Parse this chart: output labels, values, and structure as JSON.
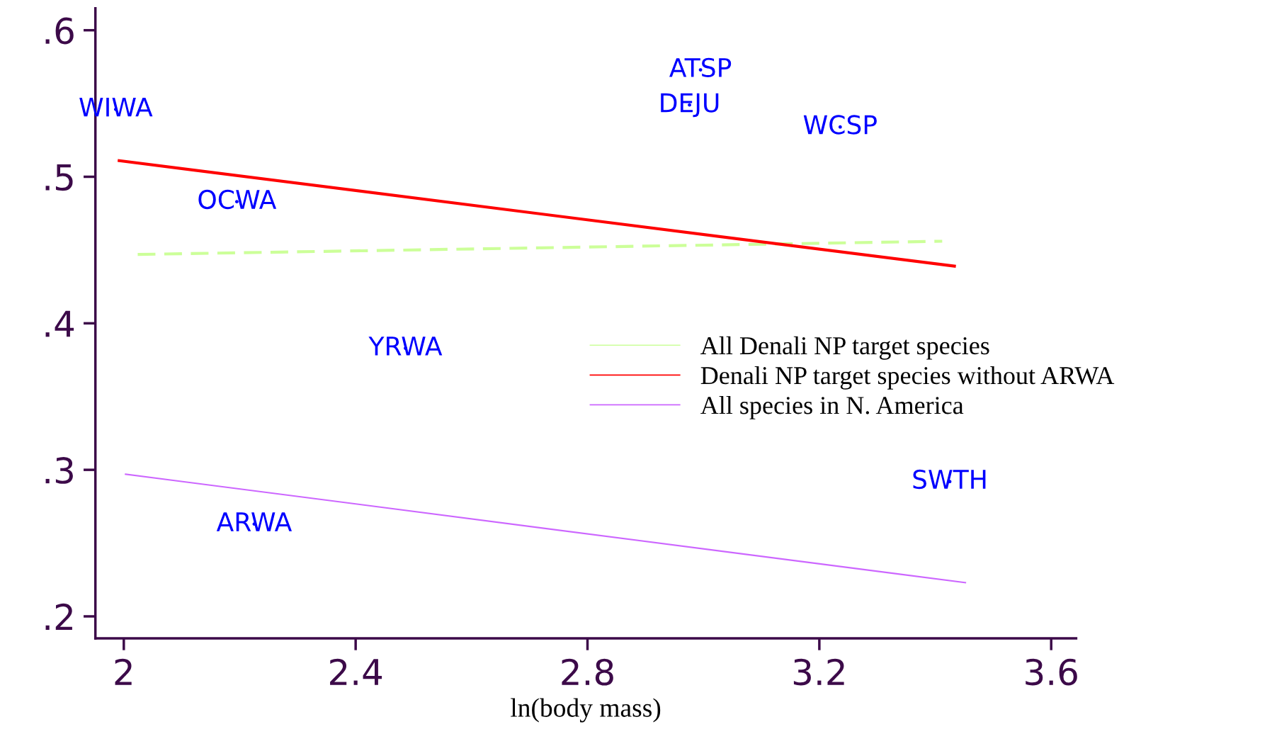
{
  "chart_data": {
    "type": "line",
    "xlabel": "ln(body mass)",
    "xlim": [
      1.951,
      3.643
    ],
    "xticks": [
      2,
      2.4,
      2.8,
      3.2,
      3.6
    ],
    "ylim": [
      0.185,
      0.615
    ],
    "yticks": [
      {
        "value": 0.2,
        "label": ".2"
      },
      {
        "value": 0.3,
        "label": ".3"
      },
      {
        "value": 0.4,
        "label": ".4"
      },
      {
        "value": 0.5,
        "label": ".5"
      },
      {
        "value": 0.6,
        "label": ".6"
      }
    ],
    "grid": false,
    "legend": "right",
    "marker": "none",
    "series": [
      {
        "name": "All Denali NP target species",
        "color": "#ccff99",
        "line_style": "dashed",
        "x": [
          2.024,
          3.412
        ],
        "values": [
          0.447,
          0.456
        ]
      },
      {
        "name": "Denali NP target species without ARWA",
        "color": "#ff0000",
        "line_style": "solid",
        "x": [
          1.992,
          3.433
        ],
        "values": [
          0.511,
          0.439
        ]
      },
      {
        "name": "All species in N. America",
        "color": "#cc66ff",
        "line_style": "solid",
        "x": [
          2.003,
          3.452
        ],
        "values": [
          0.297,
          0.223
        ]
      },
      {
        "type": "scatter",
        "color": "#0000ff",
        "x": [
          1.986,
          2.995,
          2.976,
          3.236,
          2.195,
          2.486,
          3.425,
          2.225
        ],
        "values": [
          0.546,
          0.573,
          0.549,
          0.534,
          0.483,
          0.383,
          0.292,
          0.263
        ],
        "value_labels": [
          "WIWA",
          "ATSP",
          "DEJU",
          "WCSP",
          "OCWA",
          "YRWA",
          "SWTH",
          "ARWA"
        ]
      }
    ]
  }
}
